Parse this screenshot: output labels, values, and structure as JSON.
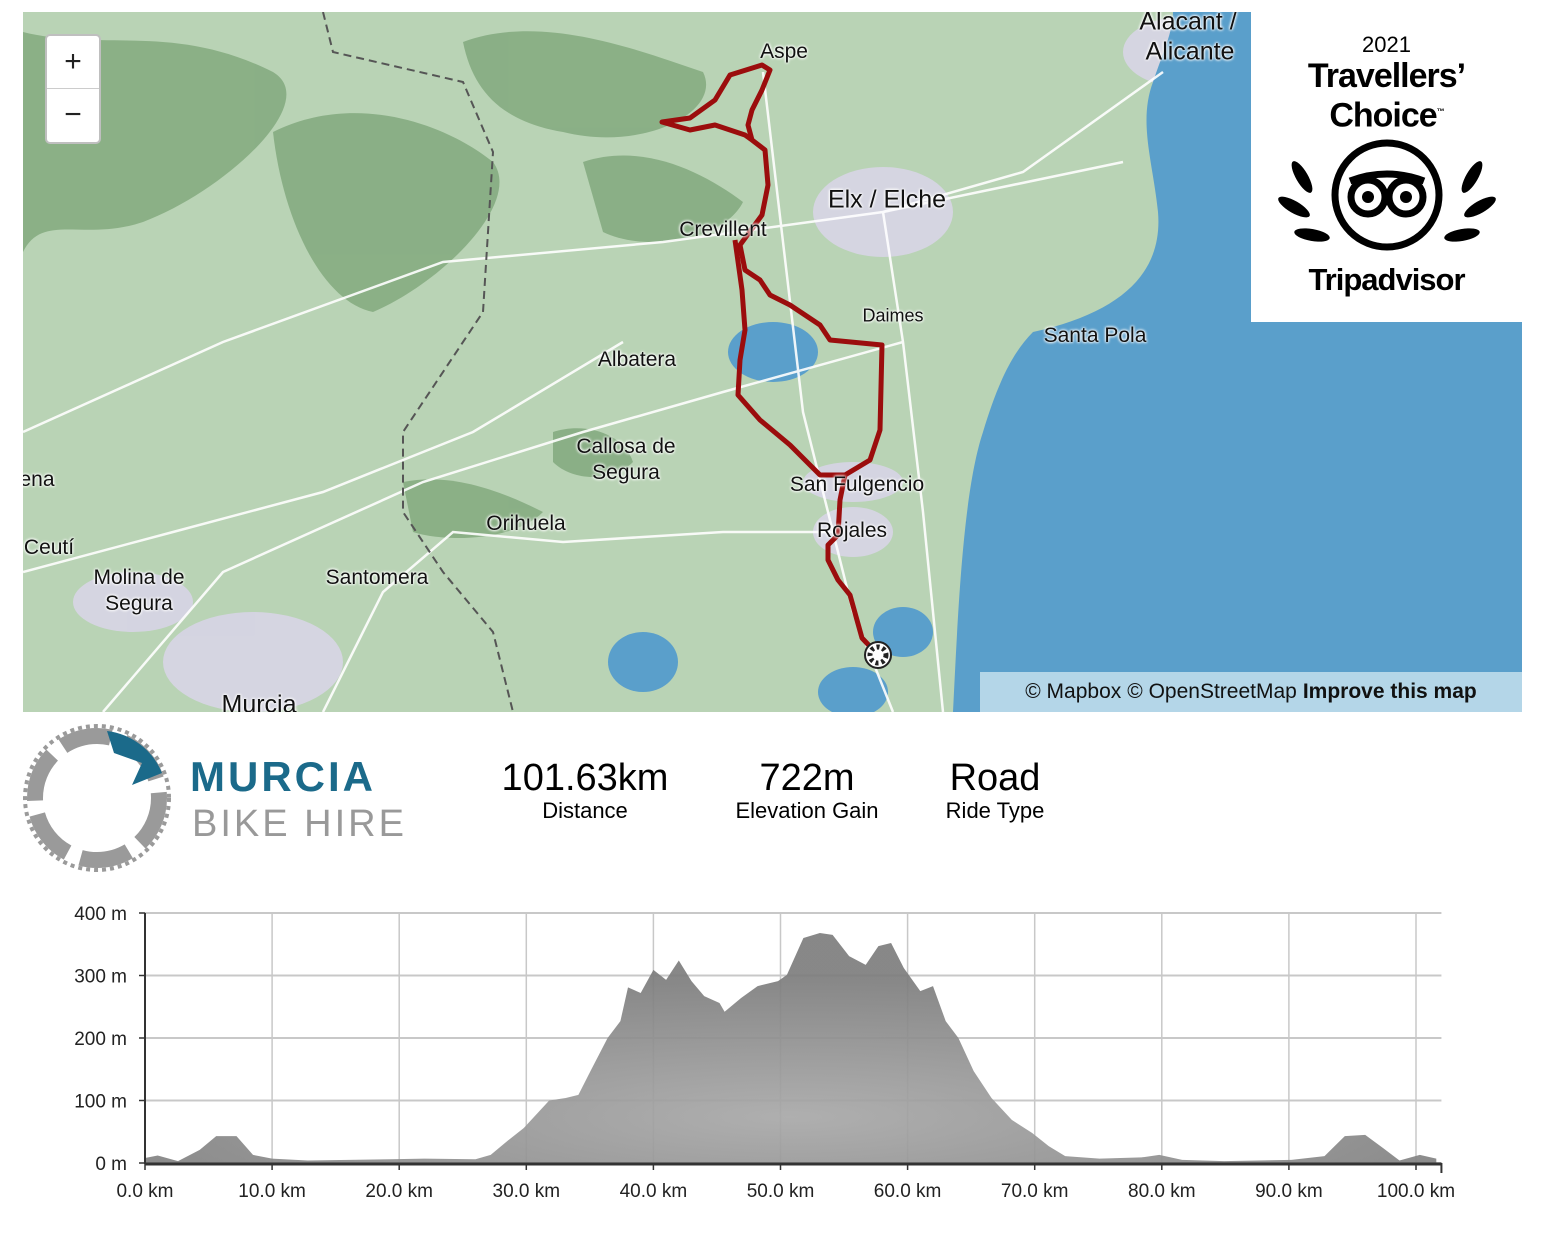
{
  "map": {
    "zoom_in_label": "+",
    "zoom_out_label": "−",
    "places": [
      "Aspe",
      "Alacant /",
      "Alicante",
      "Elx / Elche",
      "Crevillent",
      "Daimes",
      "Santa Pola",
      "Albatera",
      "Callosa de",
      "Segura",
      "San Fulgencio",
      "Rojales",
      "Orihuela",
      "Santomera",
      "Molina de",
      "Segura",
      "Ceutí",
      "ena",
      "Murcia"
    ],
    "attribution": {
      "mapbox": "© Mapbox",
      "osm": "© OpenStreetMap",
      "improve": "Improve this map"
    },
    "colors": {
      "route": "#9b0d0d",
      "land": "#b9d3b5",
      "water": "#5a9fcb",
      "roads": "#ffffff"
    }
  },
  "badge": {
    "year": "2021",
    "line1": "Travellers’",
    "line2": "Choice",
    "tm": "™",
    "brand": "Tripadvisor"
  },
  "logo": {
    "line1": "MURCIA",
    "line2": "BIKE HIRE",
    "colors": {
      "primary": "#1b6a8a",
      "secondary": "#999999"
    }
  },
  "stats": [
    {
      "value": "101.63km",
      "label": "Distance"
    },
    {
      "value": "722m",
      "label": "Elevation Gain"
    },
    {
      "value": "Road",
      "label": "Ride Type"
    }
  ],
  "chart_data": {
    "type": "area",
    "xlabel": "",
    "ylabel": "",
    "xlim": [
      0,
      102
    ],
    "ylim": [
      0,
      400
    ],
    "grid": true,
    "x_ticks": [
      "0.0 km",
      "10.0 km",
      "20.0 km",
      "30.0 km",
      "40.0 km",
      "50.0 km",
      "60.0 km",
      "70.0 km",
      "80.0 km",
      "90.0 km",
      "100.0 km"
    ],
    "x_tick_values": [
      0,
      10,
      20,
      30,
      40,
      50,
      60,
      70,
      80,
      90,
      100
    ],
    "y_ticks": [
      "0 m",
      "100 m",
      "200 m",
      "300 m",
      "400 m"
    ],
    "y_tick_values": [
      0,
      100,
      200,
      300,
      400
    ],
    "x": [
      0,
      1,
      2.6,
      4.3,
      5.6,
      7.2,
      8.5,
      10,
      12.8,
      19.3,
      22,
      26,
      27.2,
      28.5,
      29.8,
      31.8,
      33.1,
      34.1,
      35.1,
      36.4,
      37.4,
      38,
      39,
      40,
      41,
      42,
      43,
      44,
      45.2,
      45.6,
      46.9,
      48.2,
      49.8,
      50.5,
      51.8,
      53.1,
      54.1,
      55.4,
      56.7,
      57.7,
      58.7,
      59.7,
      61,
      62,
      63,
      64,
      65.2,
      66.6,
      68.2,
      69.8,
      71.1,
      72.4,
      75.1,
      78.4,
      79.8,
      81.6,
      84.9,
      90.2,
      92.8,
      94.4,
      96,
      97.4,
      98.7,
      100.3,
      101.6
    ],
    "y": [
      8,
      12,
      3,
      21,
      43,
      43,
      13,
      7,
      4,
      6,
      7,
      6,
      13,
      35,
      56,
      100,
      104,
      109,
      149,
      200,
      227,
      281,
      272,
      309,
      293,
      324,
      291,
      267,
      256,
      242,
      264,
      283,
      291,
      301,
      360,
      368,
      365,
      331,
      317,
      347,
      352,
      312,
      275,
      283,
      227,
      200,
      147,
      104,
      69,
      48,
      27,
      11,
      7,
      9,
      13,
      5,
      3,
      5,
      11,
      43,
      45,
      24,
      4,
      13,
      7
    ],
    "color": "#8c8c8c"
  }
}
